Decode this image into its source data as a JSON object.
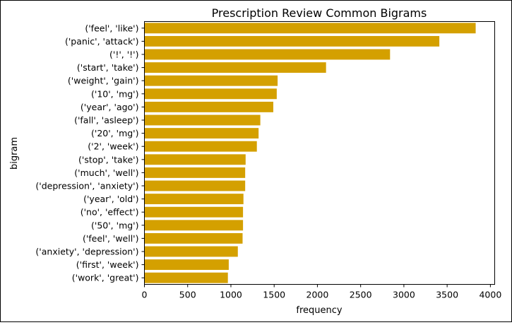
{
  "chart_data": {
    "type": "bar",
    "orientation": "horizontal",
    "title": "Prescription Review Common Bigrams",
    "xlabel": "frequency",
    "ylabel": "bigram",
    "xlim": [
      0,
      4050
    ],
    "xticks": [
      0,
      500,
      1000,
      1500,
      2000,
      2500,
      3000,
      3500,
      4000
    ],
    "bar_color": "#d4a000",
    "grid": false,
    "legend": "none",
    "categories": [
      "('feel', 'like')",
      "('panic', 'attack')",
      "('!', '!')",
      "('start', 'take')",
      "('weight', 'gain')",
      "('10', 'mg')",
      "('year', 'ago')",
      "('fall', 'asleep')",
      "('20', 'mg')",
      "('2', 'week')",
      "('stop', 'take')",
      "('much', 'well')",
      "('depression', 'anxiety')",
      "('year', 'old')",
      "('no', 'effect')",
      "('50', 'mg')",
      "('feel', 'well')",
      "('anxiety', 'depression')",
      "('first', 'week')",
      "('work', 'great')"
    ],
    "values": [
      3830,
      3410,
      2840,
      2100,
      1540,
      1530,
      1490,
      1340,
      1320,
      1300,
      1170,
      1165,
      1165,
      1145,
      1140,
      1140,
      1135,
      1080,
      975,
      965
    ]
  }
}
